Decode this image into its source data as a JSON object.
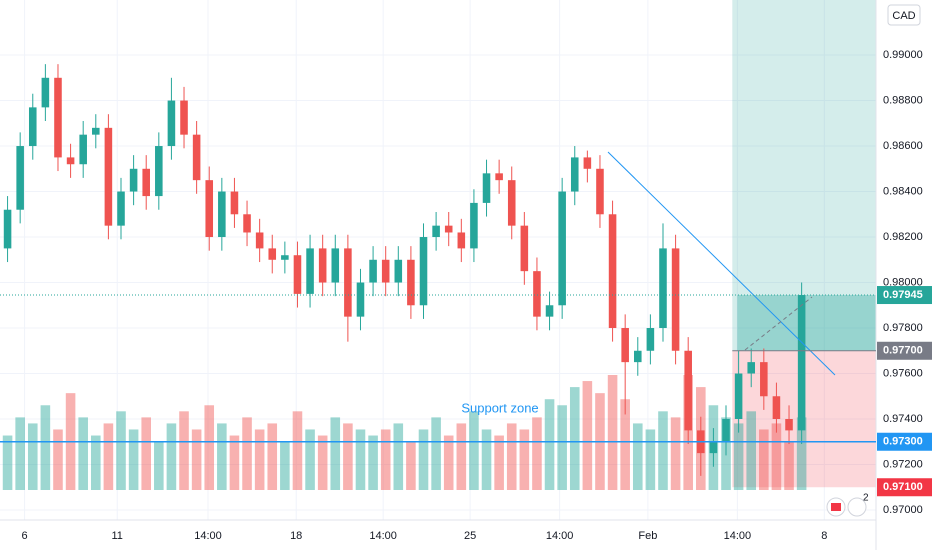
{
  "chart_data": {
    "type": "candlestick",
    "currency": "CAD",
    "up_color": "#26a69a",
    "down_color": "#ef5350",
    "open": [
      0.9815,
      0.9832,
      0.986,
      0.9877,
      0.989,
      0.9855,
      0.9852,
      0.9865,
      0.9868,
      0.9825,
      0.984,
      0.985,
      0.9838,
      0.986,
      0.988,
      0.9865,
      0.9845,
      0.982,
      0.984,
      0.983,
      0.9822,
      0.9815,
      0.981,
      0.9812,
      0.9795,
      0.9815,
      0.98,
      0.9815,
      0.9785,
      0.98,
      0.981,
      0.98,
      0.981,
      0.979,
      0.982,
      0.9825,
      0.9822,
      0.9815,
      0.9835,
      0.9848,
      0.9845,
      0.9825,
      0.9805,
      0.9785,
      0.979,
      0.984,
      0.9855,
      0.985,
      0.983,
      0.978,
      0.9765,
      0.977,
      0.978,
      0.9815,
      0.977,
      0.9735,
      0.9725,
      0.973,
      0.974,
      0.976,
      0.9765,
      0.975,
      0.974,
      0.9735
    ],
    "high": [
      0.9838,
      0.9866,
      0.9883,
      0.9896,
      0.9896,
      0.9861,
      0.9871,
      0.9874,
      0.9874,
      0.9846,
      0.9856,
      0.9856,
      0.9866,
      0.989,
      0.9886,
      0.9871,
      0.9851,
      0.9846,
      0.9846,
      0.9836,
      0.9828,
      0.9821,
      0.9818,
      0.9818,
      0.9821,
      0.9821,
      0.9821,
      0.9821,
      0.9806,
      0.9816,
      0.9816,
      0.9816,
      0.9816,
      0.9826,
      0.9831,
      0.9831,
      0.9828,
      0.9841,
      0.9854,
      0.9854,
      0.9851,
      0.9831,
      0.9811,
      0.9796,
      0.9846,
      0.986,
      0.9858,
      0.9856,
      0.9836,
      0.9786,
      0.9776,
      0.9786,
      0.9826,
      0.9821,
      0.9776,
      0.9741,
      0.9736,
      0.9746,
      0.977,
      0.9771,
      0.9771,
      0.9756,
      0.9746,
      0.98
    ],
    "low": [
      0.9809,
      0.9826,
      0.9854,
      0.9871,
      0.9849,
      0.9846,
      0.9846,
      0.9859,
      0.9819,
      0.9819,
      0.9834,
      0.9832,
      0.9832,
      0.9854,
      0.9859,
      0.9839,
      0.9814,
      0.9814,
      0.9824,
      0.9816,
      0.9809,
      0.9804,
      0.9804,
      0.9789,
      0.9789,
      0.9794,
      0.9794,
      0.9774,
      0.9779,
      0.9794,
      0.9794,
      0.9794,
      0.9784,
      0.9784,
      0.9814,
      0.9816,
      0.9809,
      0.9809,
      0.9829,
      0.9839,
      0.9819,
      0.9799,
      0.9779,
      0.9779,
      0.9784,
      0.9834,
      0.9844,
      0.9824,
      0.9774,
      0.9742,
      0.9759,
      0.9764,
      0.9774,
      0.9764,
      0.9729,
      0.9715,
      0.9719,
      0.9724,
      0.9734,
      0.9754,
      0.9744,
      0.9734,
      0.9729,
      0.9729
    ],
    "close": [
      0.9832,
      0.986,
      0.9877,
      0.989,
      0.9855,
      0.9852,
      0.9865,
      0.9868,
      0.9825,
      0.984,
      0.985,
      0.9838,
      0.986,
      0.988,
      0.9865,
      0.9845,
      0.982,
      0.984,
      0.983,
      0.9822,
      0.9815,
      0.981,
      0.9812,
      0.9795,
      0.9815,
      0.98,
      0.9815,
      0.9785,
      0.98,
      0.981,
      0.98,
      0.981,
      0.979,
      0.982,
      0.9825,
      0.9822,
      0.9815,
      0.9835,
      0.9848,
      0.9845,
      0.9825,
      0.9805,
      0.9785,
      0.979,
      0.984,
      0.9855,
      0.985,
      0.983,
      0.978,
      0.9765,
      0.977,
      0.978,
      0.9815,
      0.977,
      0.9735,
      0.9725,
      0.973,
      0.974,
      0.976,
      0.9765,
      0.975,
      0.974,
      0.9735,
      0.97945
    ],
    "volume": [
      45,
      60,
      55,
      70,
      50,
      80,
      60,
      45,
      55,
      65,
      50,
      60,
      40,
      55,
      65,
      50,
      70,
      55,
      45,
      60,
      50,
      55,
      40,
      65,
      50,
      45,
      60,
      55,
      50,
      45,
      50,
      55,
      40,
      50,
      60,
      45,
      55,
      65,
      50,
      45,
      55,
      50,
      60,
      75,
      70,
      85,
      90,
      80,
      95,
      75,
      55,
      50,
      65,
      60,
      95,
      85,
      70,
      60,
      55,
      65,
      50,
      55,
      40,
      60
    ],
    "xlim": [
      -0.6,
      68.9
    ],
    "xticks": [
      {
        "value": 1.35,
        "label": "6"
      },
      {
        "value": 8.7,
        "label": "11"
      },
      {
        "value": 15.9,
        "label": "14:00"
      },
      {
        "value": 22.9,
        "label": "18"
      },
      {
        "value": 29.8,
        "label": "14:00"
      },
      {
        "value": 36.7,
        "label": "25"
      },
      {
        "value": 43.8,
        "label": "14:00"
      },
      {
        "value": 50.8,
        "label": "Feb"
      },
      {
        "value": 57.9,
        "label": "14:00"
      },
      {
        "value": 64.8,
        "label": "8"
      }
    ],
    "ylim": [
      0.96956,
      0.99242
    ],
    "yticks": [
      {
        "value": 0.97,
        "label": "0.97000"
      },
      {
        "value": 0.972,
        "label": "0.97200"
      },
      {
        "value": 0.974,
        "label": "0.97400"
      },
      {
        "value": 0.976,
        "label": "0.97600"
      },
      {
        "value": 0.978,
        "label": "0.97800"
      },
      {
        "value": 0.98,
        "label": "0.98000"
      },
      {
        "value": 0.982,
        "label": "0.98200"
      },
      {
        "value": 0.984,
        "label": "0.98400"
      },
      {
        "value": 0.986,
        "label": "0.98600"
      },
      {
        "value": 0.988,
        "label": "0.98800"
      },
      {
        "value": 0.99,
        "label": "0.99000"
      }
    ],
    "price_labels": [
      {
        "value": 0.97945,
        "label": "0.97945",
        "color": "#26a69a"
      },
      {
        "value": 0.977,
        "label": "0.97700",
        "color": "#787b86"
      },
      {
        "value": 0.973,
        "label": "0.97300",
        "color": "#2196f3"
      },
      {
        "value": 0.971,
        "label": "0.97100",
        "color": "#f23645"
      }
    ],
    "annotation": "Support zone",
    "badge": "2"
  }
}
